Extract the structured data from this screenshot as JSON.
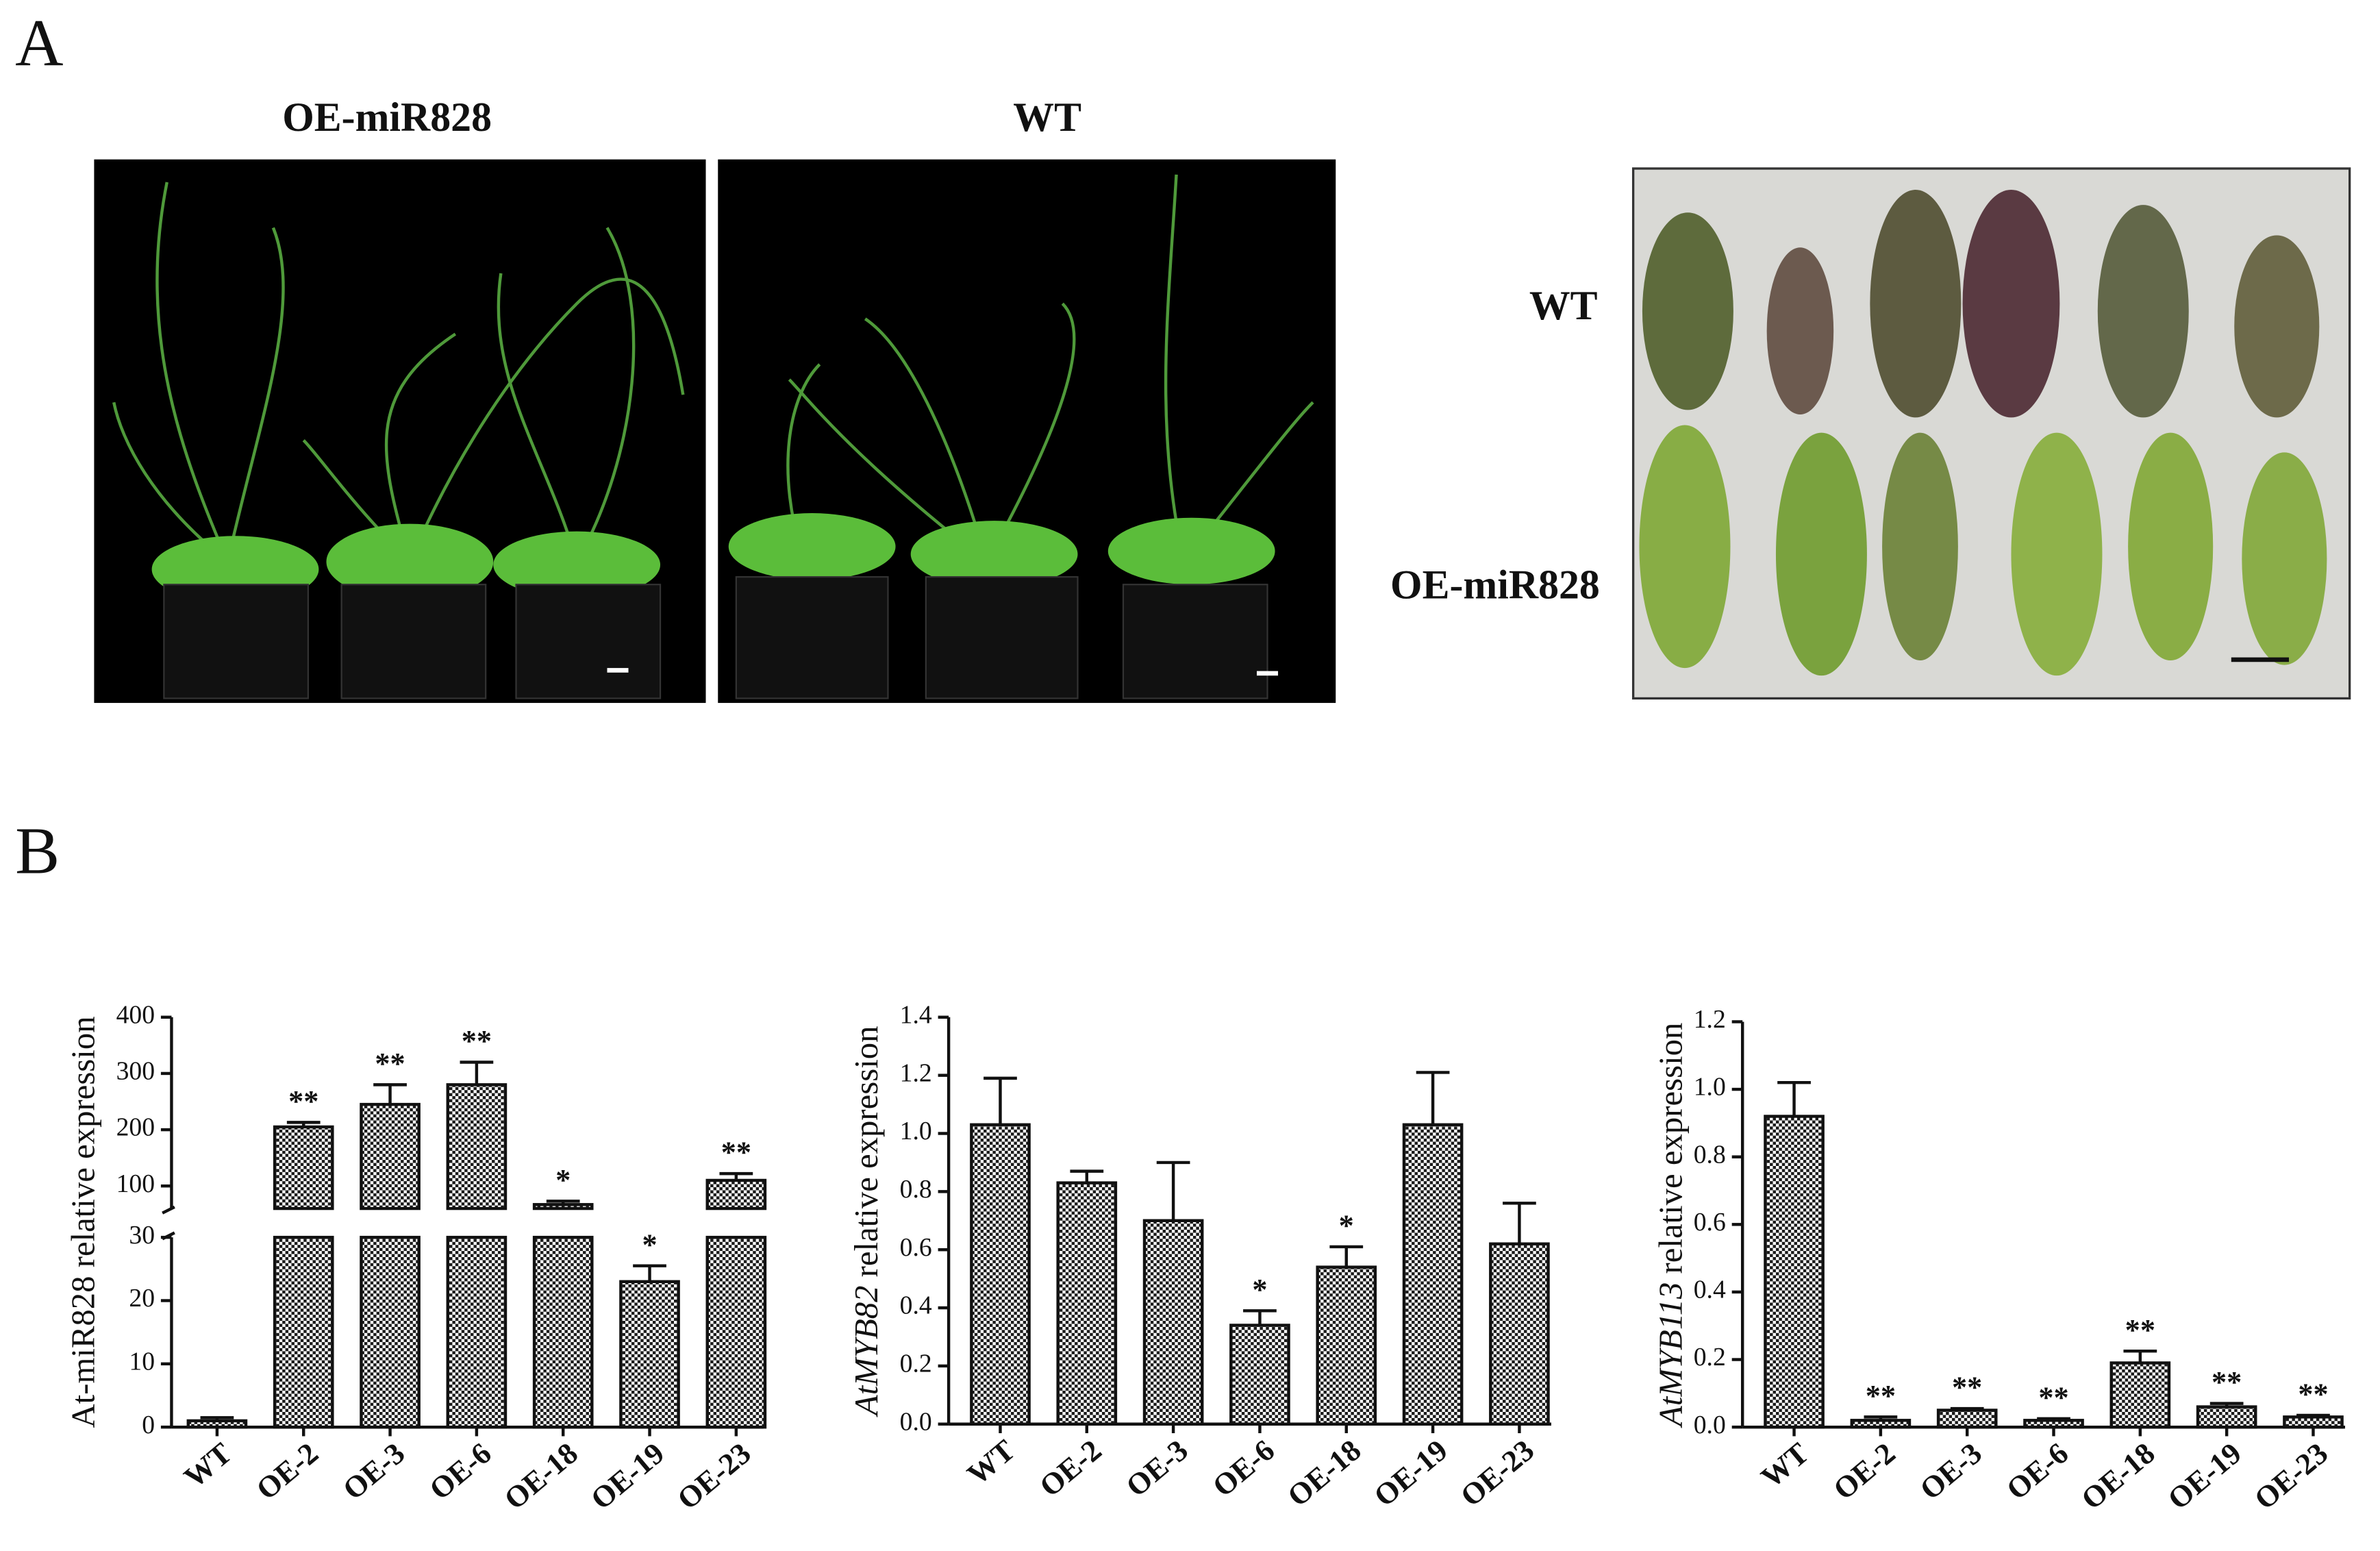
{
  "figure": {
    "panel_labels": [
      "A",
      "B"
    ],
    "photo_labels": [
      "OE-miR828",
      "WT"
    ],
    "leaf_labels": [
      "WT",
      "OE-miR828"
    ]
  },
  "chart_data": [
    {
      "type": "bar",
      "ylabel": "At-miR828 relative expression",
      "categories": [
        "WT",
        "OE-2",
        "OE-3",
        "OE-6",
        "OE-18",
        "OE-19",
        "OE-23"
      ],
      "values": [
        1,
        205,
        245,
        280,
        67,
        23,
        110
      ],
      "errors": [
        0.5,
        8,
        35,
        40,
        6,
        2.5,
        12
      ],
      "annotations": [
        null,
        "**",
        "**",
        "**",
        "*",
        "*",
        "**"
      ],
      "color": "#1a1a1a",
      "segments": [
        {
          "ylim": [
            0,
            30
          ],
          "yticks": [
            0,
            10,
            20,
            30
          ]
        },
        {
          "ylim": [
            60,
            400
          ],
          "yticks": [
            100,
            200,
            300,
            400
          ]
        }
      ]
    },
    {
      "type": "bar",
      "ylabel_gene": "AtMYB82",
      "ylabel": "relative expression",
      "categories": [
        "WT",
        "OE-2",
        "OE-3",
        "OE-6",
        "OE-18",
        "OE-19",
        "OE-23"
      ],
      "values": [
        1.03,
        0.83,
        0.7,
        0.34,
        0.54,
        1.03,
        0.62
      ],
      "errors": [
        0.16,
        0.04,
        0.2,
        0.05,
        0.07,
        0.18,
        0.14
      ],
      "annotations": [
        null,
        null,
        null,
        "*",
        "*",
        null,
        null
      ],
      "color": "#1a1a1a",
      "ylim": [
        0,
        1.4
      ],
      "yticks": [
        {
          "value": 0,
          "label": "0.0"
        },
        0.2,
        0.4,
        0.6,
        0.8,
        {
          "value": 1,
          "label": "1.0"
        },
        1.2,
        1.4
      ]
    },
    {
      "type": "bar",
      "ylabel_gene": "AtMYB113",
      "ylabel": "relative expression",
      "categories": [
        "WT",
        "OE-2",
        "OE-3",
        "OE-6",
        "OE-18",
        "OE-19",
        "OE-23"
      ],
      "values": [
        0.92,
        0.02,
        0.05,
        0.02,
        0.19,
        0.06,
        0.03
      ],
      "errors": [
        0.1,
        0.01,
        0.005,
        0.005,
        0.035,
        0.01,
        0.005
      ],
      "annotations": [
        null,
        "**",
        "**",
        "**",
        "**",
        "**",
        "**"
      ],
      "color": "#1a1a1a",
      "ylim": [
        0,
        1.2
      ],
      "yticks": [
        {
          "value": 0,
          "label": "0.0"
        },
        0.2,
        0.4,
        0.6,
        0.8,
        {
          "value": 1,
          "label": "1.0"
        },
        1.2
      ]
    }
  ]
}
